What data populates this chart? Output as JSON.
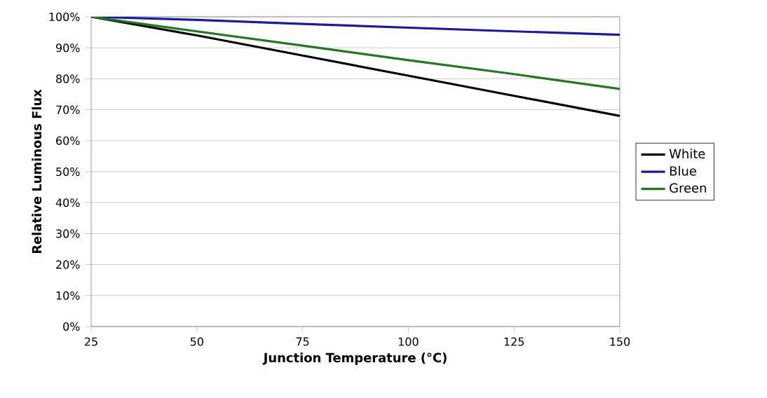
{
  "chart_data": {
    "type": "line",
    "xlabel": "Junction Temperature (°C)",
    "ylabel": "Relative Luminous Flux",
    "x": [
      25,
      50,
      75,
      100,
      125,
      150
    ],
    "series": [
      {
        "name": "White",
        "color": "#000000",
        "values": [
          100,
          94,
          87.5,
          81,
          74.5,
          68
        ]
      },
      {
        "name": "Blue",
        "color": "#1a1aa6",
        "values": [
          100,
          99,
          97.7,
          96.5,
          95.3,
          94.2
        ]
      },
      {
        "name": "Green",
        "color": "#1f7a1f",
        "values": [
          100,
          95.3,
          90.7,
          86,
          81.5,
          76.7
        ]
      }
    ],
    "xlim": [
      25,
      150
    ],
    "xticks": [
      25,
      50,
      75,
      100,
      125,
      150
    ],
    "ylim": [
      0,
      100
    ],
    "yticks": [
      {
        "value": 0,
        "label": "0%"
      },
      {
        "value": 10,
        "label": "10%"
      },
      {
        "value": 20,
        "label": "20%"
      },
      {
        "value": 30,
        "label": "30%"
      },
      {
        "value": 40,
        "label": "40%"
      },
      {
        "value": 50,
        "label": "50%"
      },
      {
        "value": 60,
        "label": "60%"
      },
      {
        "value": 70,
        "label": "70%"
      },
      {
        "value": 80,
        "label": "80%"
      },
      {
        "value": 90,
        "label": "90%"
      },
      {
        "value": 100,
        "label": "100%"
      }
    ],
    "grid": "y",
    "legend": "right"
  }
}
